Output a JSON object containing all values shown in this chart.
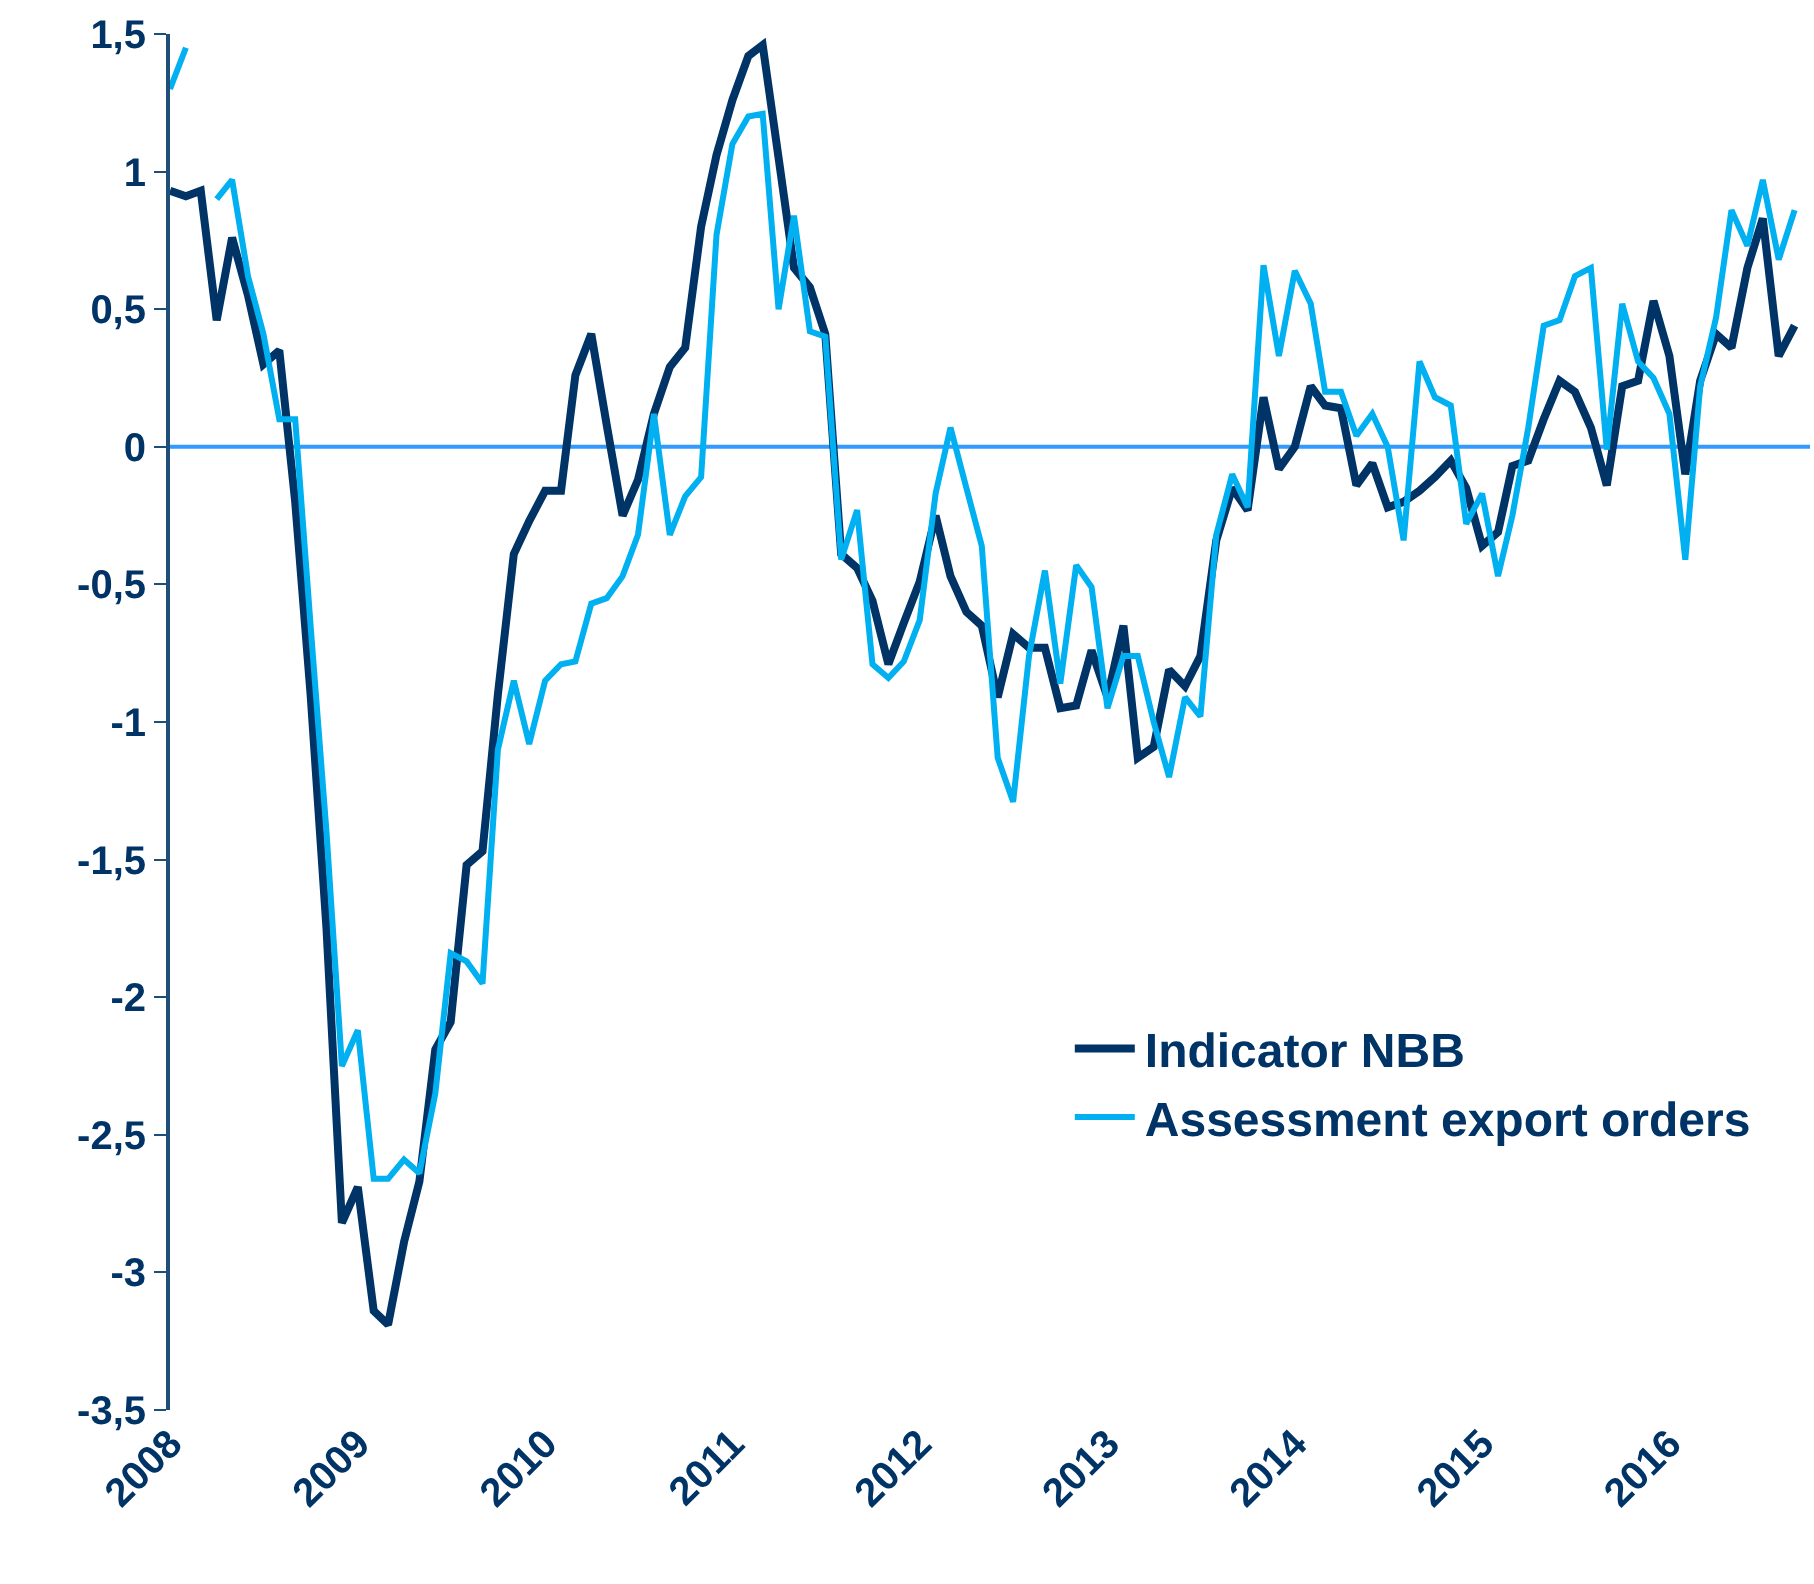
{
  "chart_data": {
    "type": "line",
    "x": [
      "2008-01",
      "2008-02",
      "2008-03",
      "2008-04",
      "2008-05",
      "2008-06",
      "2008-07",
      "2008-08",
      "2008-09",
      "2008-10",
      "2008-11",
      "2008-12",
      "2009-01",
      "2009-02",
      "2009-03",
      "2009-04",
      "2009-05",
      "2009-06",
      "2009-07",
      "2009-08",
      "2009-09",
      "2009-10",
      "2009-11",
      "2009-12",
      "2010-01",
      "2010-02",
      "2010-03",
      "2010-04",
      "2010-05",
      "2010-06",
      "2010-07",
      "2010-08",
      "2010-09",
      "2010-10",
      "2010-11",
      "2010-12",
      "2011-01",
      "2011-02",
      "2011-03",
      "2011-04",
      "2011-05",
      "2011-06",
      "2011-07",
      "2011-08",
      "2011-09",
      "2011-10",
      "2011-11",
      "2011-12",
      "2012-01",
      "2012-02",
      "2012-03",
      "2012-04",
      "2012-05",
      "2012-06",
      "2012-07",
      "2012-08",
      "2012-09",
      "2012-10",
      "2012-11",
      "2012-12",
      "2013-01",
      "2013-02",
      "2013-03",
      "2013-04",
      "2013-05",
      "2013-06",
      "2013-07",
      "2013-08",
      "2013-09",
      "2013-10",
      "2013-11",
      "2013-12",
      "2014-01",
      "2014-02",
      "2014-03",
      "2014-04",
      "2014-05",
      "2014-06",
      "2014-07",
      "2014-08",
      "2014-09",
      "2014-10",
      "2014-11",
      "2014-12",
      "2015-01",
      "2015-02",
      "2015-03",
      "2015-04",
      "2015-05",
      "2015-06",
      "2015-07",
      "2015-08",
      "2015-09",
      "2015-10",
      "2015-11",
      "2015-12",
      "2016-01",
      "2016-02",
      "2016-03",
      "2016-04",
      "2016-05",
      "2016-06",
      "2016-07",
      "2016-08",
      "2016-09"
    ],
    "series": [
      {
        "name": "Indicator NBB",
        "color": "#003366",
        "values": [
          0.93,
          0.91,
          0.93,
          0.46,
          0.76,
          0.55,
          0.3,
          0.35,
          -0.2,
          -0.9,
          -1.75,
          -2.82,
          -2.69,
          -3.14,
          -3.19,
          -2.89,
          -2.67,
          -2.19,
          -2.09,
          -1.52,
          -1.47,
          -0.9,
          -0.39,
          -0.27,
          -0.16,
          -0.16,
          0.26,
          0.41,
          0.08,
          -0.25,
          -0.12,
          0.12,
          0.29,
          0.36,
          0.8,
          1.06,
          1.26,
          1.42,
          1.46,
          1.05,
          0.65,
          0.58,
          0.41,
          -0.39,
          -0.44,
          -0.56,
          -0.79,
          -0.64,
          -0.49,
          -0.25,
          -0.47,
          -0.6,
          -0.65,
          -0.91,
          -0.68,
          -0.73,
          -0.73,
          -0.95,
          -0.94,
          -0.74,
          -0.91,
          -0.65,
          -1.13,
          -1.09,
          -0.81,
          -0.87,
          -0.76,
          -0.34,
          -0.15,
          -0.23,
          0.18,
          -0.08,
          0.0,
          0.22,
          0.15,
          0.14,
          -0.14,
          -0.06,
          -0.22,
          -0.2,
          -0.16,
          -0.11,
          -0.05,
          -0.15,
          -0.36,
          -0.31,
          -0.07,
          -0.05,
          0.1,
          0.24,
          0.2,
          0.07,
          -0.14,
          0.22,
          0.24,
          0.53,
          0.33,
          -0.1,
          0.24,
          0.41,
          0.36,
          0.65,
          0.83,
          0.33,
          0.44
        ]
      },
      {
        "name": "Assessment export orders",
        "color": "#00b0f0",
        "values": [
          1.3,
          1.45,
          null,
          0.9,
          0.97,
          0.62,
          0.41,
          0.1,
          0.1,
          -0.65,
          -1.4,
          -2.25,
          -2.12,
          -2.66,
          -2.66,
          -2.59,
          -2.64,
          -2.35,
          -1.84,
          -1.87,
          -1.95,
          -1.1,
          -0.85,
          -1.08,
          -0.85,
          -0.79,
          -0.78,
          -0.57,
          -0.55,
          -0.47,
          -0.32,
          0.12,
          -0.32,
          -0.18,
          -0.11,
          0.77,
          1.1,
          1.2,
          1.21,
          0.5,
          0.84,
          0.42,
          0.4,
          -0.41,
          -0.23,
          -0.79,
          -0.84,
          -0.78,
          -0.63,
          -0.17,
          0.07,
          -0.15,
          -0.36,
          -1.13,
          -1.29,
          -0.76,
          -0.45,
          -0.86,
          -0.43,
          -0.51,
          -0.95,
          -0.76,
          -0.76,
          -1.0,
          -1.2,
          -0.91,
          -0.98,
          -0.32,
          -0.1,
          -0.22,
          0.66,
          0.33,
          0.64,
          0.52,
          0.2,
          0.2,
          0.04,
          0.12,
          0.0,
          -0.34,
          0.31,
          0.18,
          0.15,
          -0.28,
          -0.17,
          -0.47,
          -0.25,
          0.07,
          0.44,
          0.46,
          0.62,
          0.65,
          -0.01,
          0.52,
          0.31,
          0.25,
          0.12,
          -0.41,
          0.22,
          0.47,
          0.86,
          0.73,
          0.97,
          0.68,
          0.86
        ]
      }
    ],
    "xlim": [
      "2008-01",
      "2016-10"
    ],
    "xticks": [
      {
        "value": "2008-01",
        "label": "2008"
      },
      {
        "value": "2009-01",
        "label": "2009"
      },
      {
        "value": "2010-01",
        "label": "2010"
      },
      {
        "value": "2011-01",
        "label": "2011"
      },
      {
        "value": "2012-01",
        "label": "2012"
      },
      {
        "value": "2013-01",
        "label": "2013"
      },
      {
        "value": "2014-01",
        "label": "2014"
      },
      {
        "value": "2015-01",
        "label": "2015"
      },
      {
        "value": "2016-01",
        "label": "2016"
      }
    ],
    "ylim": [
      -3.5,
      1.5
    ],
    "yticks": [
      {
        "value": 1.5,
        "label": "1,5"
      },
      1,
      {
        "value": 0.5,
        "label": "0,5"
      },
      0,
      {
        "value": -0.5,
        "label": "-0,5"
      },
      -1,
      {
        "value": -1.5,
        "label": "-1,5"
      },
      -2,
      {
        "value": -2.5,
        "label": "-2,5"
      },
      -3,
      {
        "value": -3.5,
        "label": "-3,5"
      }
    ],
    "ref_lines": [
      {
        "axis": "y",
        "value": 0,
        "color": "#3399ff"
      }
    ],
    "grid": false,
    "legend": "bottom right",
    "marker": "none",
    "line_style": "solid"
  }
}
